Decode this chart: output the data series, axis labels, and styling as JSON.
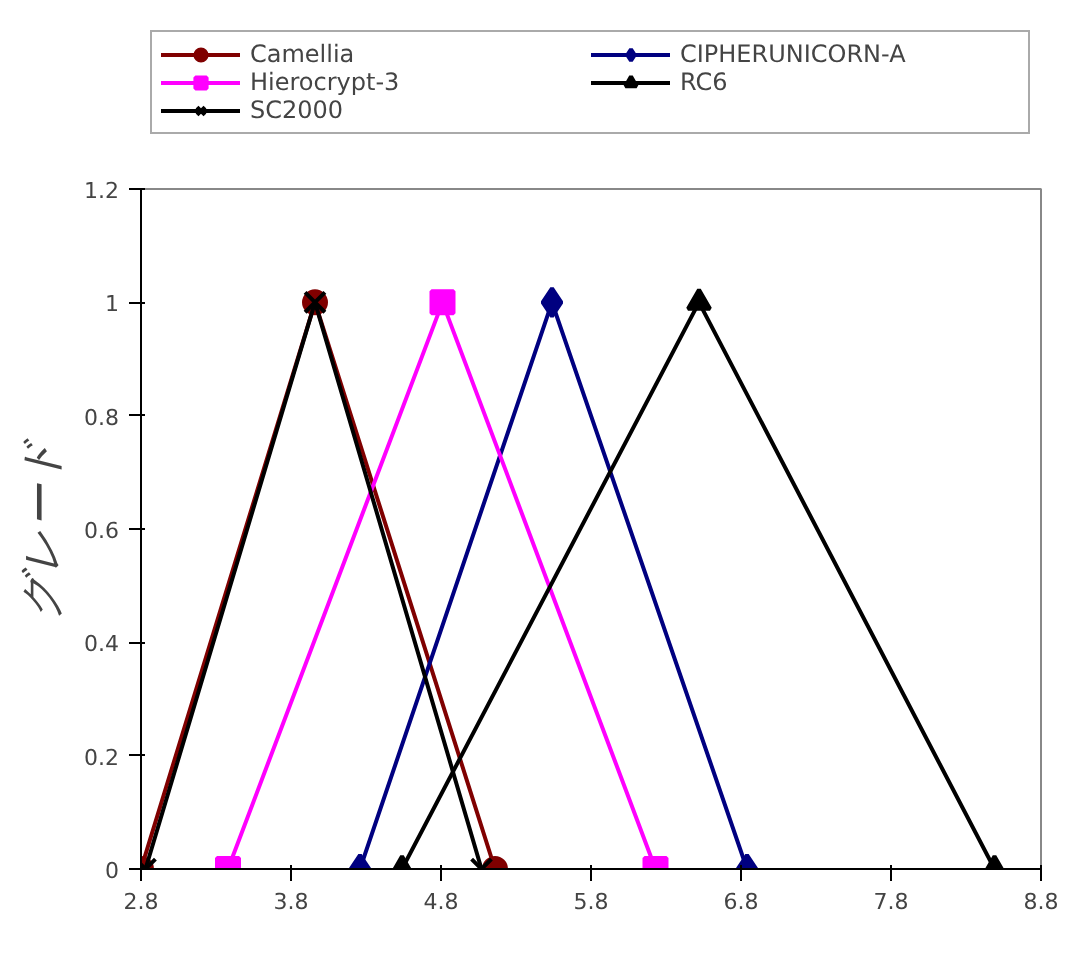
{
  "chart_data": {
    "type": "line",
    "ylabel": "グレード",
    "xlim": [
      2.8,
      8.8
    ],
    "xticks": [
      2.8,
      3.8,
      4.8,
      5.8,
      6.8,
      7.8,
      8.8
    ],
    "ylim": [
      0,
      1.2
    ],
    "yticks": [
      0,
      0.2,
      0.4,
      0.6,
      0.8,
      1,
      1.2
    ],
    "grid": false,
    "legend": "top",
    "line_style": "solid",
    "series": [
      {
        "name": "Camellia",
        "color": "#800000",
        "marker": "circle",
        "x": [
          2.8,
          3.96,
          5.16
        ],
        "values": [
          0,
          1,
          0
        ]
      },
      {
        "name": "CIPHERUNICORN-A",
        "color": "#000080",
        "marker": "diamond",
        "x": [
          4.26,
          5.54,
          6.84
        ],
        "values": [
          0,
          1,
          0
        ]
      },
      {
        "name": "Hierocrypt-3",
        "color": "#ff00ff",
        "marker": "square",
        "x": [
          3.38,
          4.81,
          6.23
        ],
        "values": [
          0,
          1,
          0
        ]
      },
      {
        "name": "RC6",
        "color": "#000000",
        "marker": "triangle",
        "x": [
          4.54,
          6.52,
          8.49
        ],
        "values": [
          0,
          1,
          0
        ]
      },
      {
        "name": "SC2000",
        "color": "#000000",
        "marker": "cross",
        "x": [
          2.83,
          3.96,
          5.07
        ],
        "values": [
          0,
          1,
          0
        ]
      }
    ]
  }
}
